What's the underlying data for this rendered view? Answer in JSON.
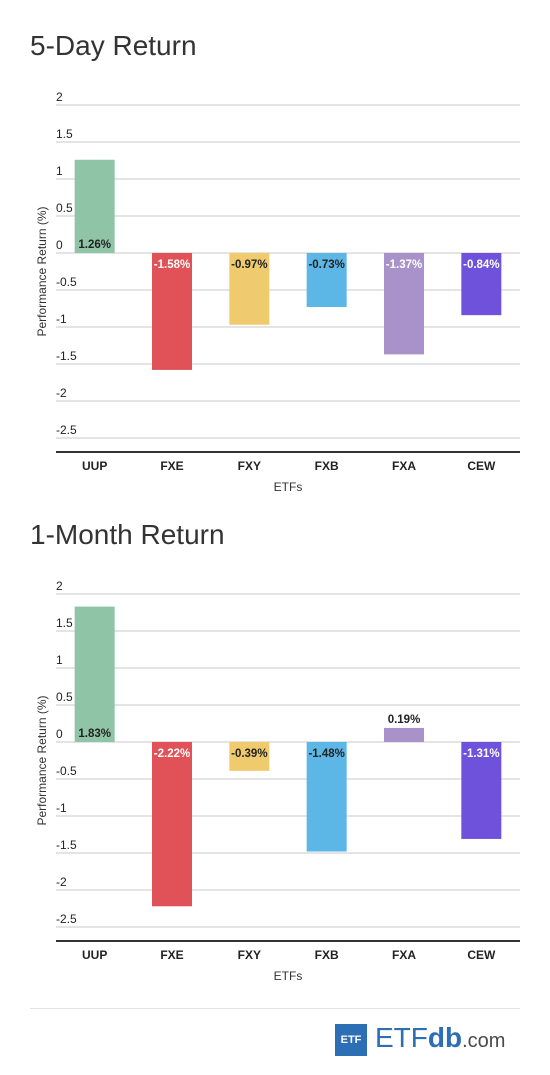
{
  "charts": [
    {
      "panel_title": "5-Day Return",
      "chart_data": {
        "type": "bar",
        "title": "5-Day Return",
        "xlabel": "ETFs",
        "ylabel": "Performance Return (%)",
        "categories": [
          "UUP",
          "FXE",
          "FXY",
          "FXB",
          "FXA",
          "CEW"
        ],
        "values": [
          1.26,
          -1.58,
          -0.97,
          -0.73,
          -1.37,
          -0.84
        ],
        "data_labels": [
          "1.26%",
          "-1.58%",
          "-0.97%",
          "-0.73%",
          "-1.37%",
          "-0.84%"
        ],
        "colors": [
          "#8fc4a7",
          "#e05257",
          "#f0cb6d",
          "#5db7e6",
          "#a992c9",
          "#6f52db"
        ],
        "label_colors": [
          "#222222",
          "#ffffff",
          "#222222",
          "#222222",
          "#ffffff",
          "#ffffff"
        ],
        "yticks": [
          2,
          1.5,
          1,
          0.5,
          0,
          -0.5,
          -1,
          -1.5,
          -2,
          -2.5
        ],
        "ylim": [
          -2.5,
          2
        ],
        "grid": true,
        "legend": "none"
      }
    },
    {
      "panel_title": "1-Month Return",
      "chart_data": {
        "type": "bar",
        "title": "1-Month Return",
        "xlabel": "ETFs",
        "ylabel": "Performance Return (%)",
        "categories": [
          "UUP",
          "FXE",
          "FXY",
          "FXB",
          "FXA",
          "CEW"
        ],
        "values": [
          1.83,
          -2.22,
          -0.39,
          -1.48,
          0.19,
          -1.31
        ],
        "data_labels": [
          "1.83%",
          "-2.22%",
          "-0.39%",
          "-1.48%",
          "0.19%",
          "-1.31%"
        ],
        "colors": [
          "#8fc4a7",
          "#e05257",
          "#f0cb6d",
          "#5db7e6",
          "#a992c9",
          "#6f52db"
        ],
        "label_colors": [
          "#222222",
          "#ffffff",
          "#222222",
          "#222222",
          "#222222",
          "#ffffff"
        ],
        "yticks": [
          2,
          1.5,
          1,
          0.5,
          0,
          -0.5,
          -1,
          -1.5,
          -2,
          -2.5
        ],
        "ylim": [
          -2.5,
          2
        ],
        "grid": true,
        "legend": "none"
      }
    }
  ],
  "footer": {
    "logo_box_text": "ETF",
    "logo_main": "ETF",
    "logo_db": "db",
    "logo_com": ".com",
    "brand_color": "#2d6fb4"
  }
}
